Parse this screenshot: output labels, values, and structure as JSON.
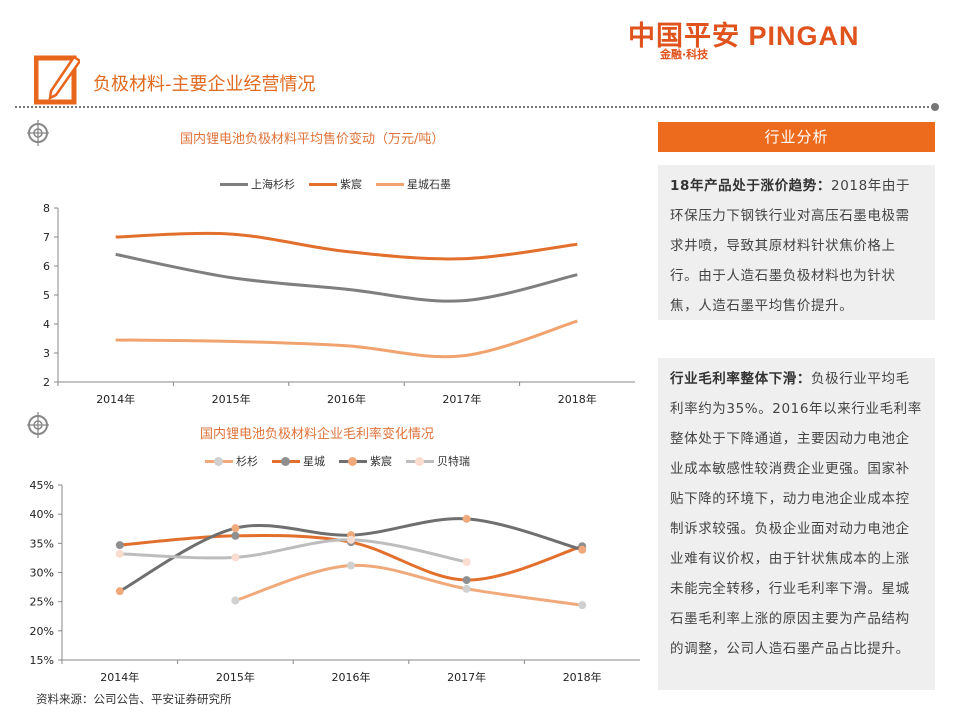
{
  "logo": {
    "brand": "中国平安 PINGAN",
    "tagline": "金融·科技"
  },
  "page_title": "负极材料-主要企业经营情况",
  "side": {
    "header": "行业分析",
    "p1_bold": "18年产品处于涨价趋势：",
    "p1_text": "2018年由于环保压力下钢铁行业对高压石墨电极需求井喷，导致其原材料针状焦价格上行。由于人造石墨负极材料也为针状焦，人造石墨平均售价提升。",
    "p2_bold": "行业毛利率整体下滑：",
    "p2_text": "负极行业平均毛利率约为35%。2016年以来行业毛利率整体处于下降通道，主要因动力电池企业成本敏感性较消费企业更强。国家补贴下降的环境下，动力电池企业成本控制诉求较强。负极企业面对动力电池企业难有议价权，由于针状焦成本的上涨未能完全转移，行业毛利率下滑。星城石墨毛利率上涨的原因主要为产品结构的调整，公司人造石墨产品占比提升。"
  },
  "source": "资料来源：公司公告、平安证券研究所",
  "chart_data": [
    {
      "type": "line",
      "title": "国内锂电池负极材料平均售价变动（万元/吨）",
      "categories": [
        "2014年",
        "2015年",
        "2016年",
        "2017年",
        "2018年"
      ],
      "ylim": [
        2,
        8
      ],
      "yticks": [
        "2",
        "3",
        "4",
        "5",
        "6",
        "7",
        "8"
      ],
      "legend": "top",
      "grid": false,
      "smooth": true,
      "series": [
        {
          "name": "上海杉杉",
          "color": "#7f7f7f",
          "values": [
            6.4,
            5.6,
            5.2,
            4.8,
            5.7
          ]
        },
        {
          "name": "紫宸",
          "color": "#e36f2c",
          "values": [
            7.0,
            7.1,
            6.5,
            6.25,
            6.75
          ]
        },
        {
          "name": "星城石墨",
          "color": "#f0a36e",
          "values": [
            3.45,
            3.4,
            3.25,
            2.9,
            4.1
          ]
        }
      ]
    },
    {
      "type": "line",
      "title": "国内锂电池负极材料企业毛利率变化情况",
      "categories": [
        "2014年",
        "2015年",
        "2016年",
        "2017年",
        "2018年"
      ],
      "ylim": [
        15,
        45
      ],
      "yticks": [
        "15%",
        "20%",
        "25%",
        "30%",
        "35%",
        "40%",
        "45%"
      ],
      "legend": "top",
      "grid": false,
      "smooth": true,
      "series": [
        {
          "name": "杉杉",
          "color": "#f0a97a",
          "marker": "#d0d0d0",
          "values": [
            null,
            25.2,
            31.2,
            27.2,
            24.4
          ]
        },
        {
          "name": "星城",
          "color": "#e36f2c",
          "marker": "#8f8f8f",
          "values": [
            34.7,
            36.3,
            35.2,
            28.7,
            34.5
          ]
        },
        {
          "name": "紫宸",
          "color": "#6f6f6f",
          "marker": "#f0a97a",
          "values": [
            26.8,
            37.6,
            36.4,
            39.2,
            33.9
          ]
        },
        {
          "name": "贝特瑞",
          "color": "#bdbdbd",
          "marker": "#fbdcd0",
          "values": [
            33.2,
            32.6,
            35.6,
            31.8,
            null
          ]
        }
      ]
    }
  ]
}
